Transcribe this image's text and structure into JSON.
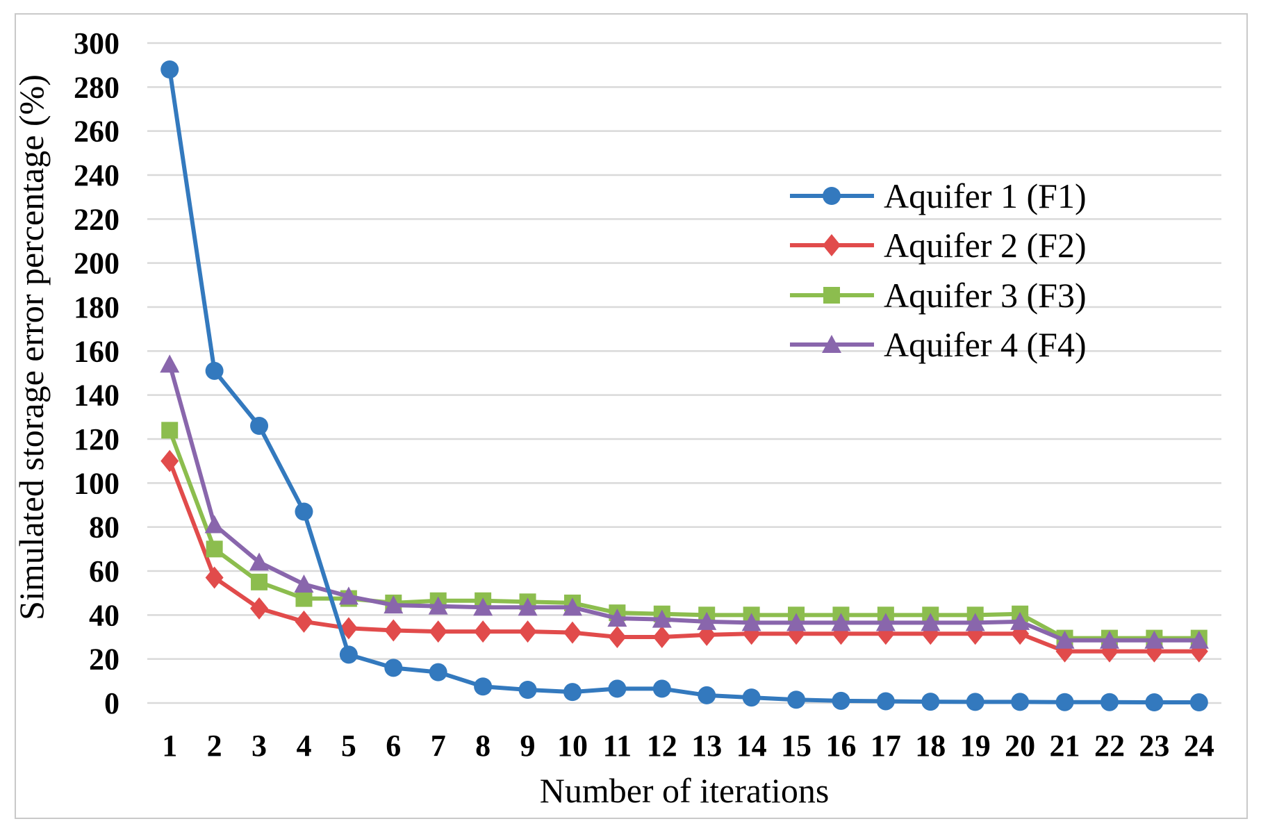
{
  "figure": {
    "background_color": "#ffffff",
    "frame_color": "#c9c9c9"
  },
  "chart_data": {
    "type": "line",
    "title": "",
    "xlabel": "Number of iterations",
    "ylabel": "Simulated storage error percentage (%)",
    "categories": [
      1,
      2,
      3,
      4,
      5,
      6,
      7,
      8,
      9,
      10,
      11,
      12,
      13,
      14,
      15,
      16,
      17,
      18,
      19,
      20,
      21,
      22,
      23,
      24
    ],
    "ylim": [
      0,
      300
    ],
    "y_tick_step": 20,
    "grid": "horizontal",
    "gridline_color": "#d9d9d9",
    "legend_position": "inside-top-right",
    "series": [
      {
        "name": "Aquifer 1 (F1)",
        "color": "#3379be",
        "marker": "circle",
        "values": [
          288,
          151,
          126,
          87,
          22,
          16,
          14,
          7.5,
          6,
          5,
          6.5,
          6.5,
          3.5,
          2.5,
          1.5,
          1,
          0.8,
          0.6,
          0.5,
          0.5,
          0.4,
          0.4,
          0.3,
          0.3
        ]
      },
      {
        "name": "Aquifer 2 (F2)",
        "color": "#e14b4b",
        "marker": "diamond",
        "values": [
          110,
          57,
          43,
          37,
          34,
          33,
          32.5,
          32.5,
          32.5,
          32,
          30,
          30,
          31,
          31.5,
          31.5,
          31.5,
          31.5,
          31.5,
          31.5,
          31.5,
          23.5,
          23.5,
          23.5,
          23.5
        ]
      },
      {
        "name": "Aquifer 3 (F3)",
        "color": "#8cbd4e",
        "marker": "square",
        "values": [
          124,
          70,
          55,
          47.5,
          47.5,
          45.5,
          46.5,
          46.5,
          46,
          45.5,
          41,
          40.5,
          40,
          40,
          40,
          40,
          40,
          40,
          40,
          40.5,
          29.5,
          29.5,
          29.5,
          29.5
        ]
      },
      {
        "name": "Aquifer 4 (F4)",
        "color": "#8966ac",
        "marker": "triangle",
        "values": [
          154,
          81,
          64,
          54,
          48.5,
          44.5,
          44,
          43.5,
          43.5,
          43.5,
          38.5,
          38,
          37,
          36.5,
          36.5,
          36.5,
          36.5,
          36.5,
          36.5,
          37,
          28.5,
          28.5,
          28.5,
          28.5
        ]
      }
    ]
  }
}
